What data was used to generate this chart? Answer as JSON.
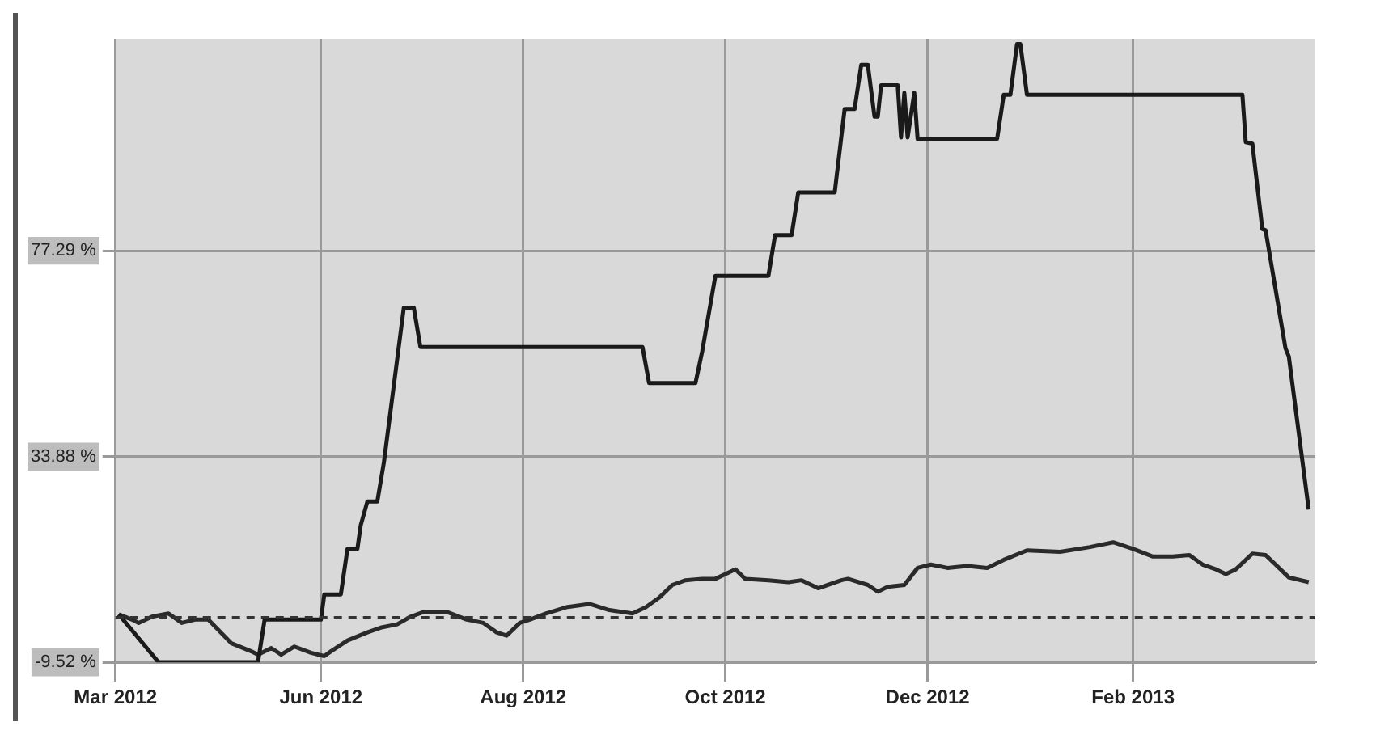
{
  "chart_data": {
    "type": "line",
    "x": [
      "2012-04-01",
      "2012-04-13",
      "2012-05-13",
      "2012-05-15",
      "2012-06-01",
      "2012-06-02",
      "2012-06-07",
      "2012-06-09",
      "2012-06-12",
      "2012-06-13",
      "2012-06-15",
      "2012-06-18",
      "2012-06-20",
      "2012-06-26",
      "2012-06-29",
      "2012-07-01",
      "2012-09-06",
      "2012-09-08",
      "2012-09-22",
      "2012-09-24",
      "2012-09-28",
      "2012-10-14",
      "2012-10-16",
      "2012-10-21",
      "2012-10-23",
      "2012-11-03",
      "2012-11-06",
      "2012-11-09",
      "2012-11-11",
      "2012-11-13",
      "2012-11-15",
      "2012-11-16",
      "2012-11-17",
      "2012-11-22",
      "2012-11-23",
      "2012-11-24",
      "2012-11-25",
      "2012-11-27",
      "2012-11-28",
      "2012-12-22",
      "2012-12-24",
      "2012-12-26",
      "2012-12-28",
      "2012-12-29",
      "2012-12-31",
      "2013-03-06",
      "2013-03-07",
      "2013-03-09",
      "2013-03-12",
      "2013-03-13",
      "2013-03-19",
      "2013-03-20",
      "2013-03-26"
    ],
    "series": [
      {
        "color": "#1a1a1a",
        "values": [
          0.6,
          -9.5,
          -9.5,
          -0.5,
          -0.5,
          4.8,
          4.8,
          14.4,
          14.4,
          19.4,
          24.4,
          24.4,
          32.7,
          65.3,
          65.3,
          57.0,
          57.0,
          49.4,
          49.4,
          56.0,
          72.0,
          72.0,
          80.6,
          80.6,
          89.6,
          89.6,
          107.2,
          107.2,
          116.5,
          116.5,
          105.6,
          105.6,
          112.2,
          112.2,
          101.2,
          110.6,
          101.2,
          110.6,
          100.9,
          100.9,
          110.2,
          110.2,
          120.9,
          120.9,
          110.2,
          110.2,
          100.2,
          99.9,
          81.9,
          81.6,
          56.7,
          55.0,
          22.7
        ]
      },
      {
        "color": "#2a2a2a",
        "x": [
          "2012-04-01",
          "2012-04-05",
          "2012-04-07",
          "2012-04-11",
          "2012-04-16",
          "2012-04-20",
          "2012-04-24",
          "2012-04-28",
          "2012-05-05",
          "2012-05-11",
          "2012-05-13",
          "2012-05-17",
          "2012-05-20",
          "2012-05-24",
          "2012-05-29",
          "2012-06-02",
          "2012-06-04",
          "2012-06-09",
          "2012-06-15",
          "2012-06-19",
          "2012-06-24",
          "2012-06-28",
          "2012-07-02",
          "2012-07-09",
          "2012-07-15",
          "2012-07-20",
          "2012-07-24",
          "2012-07-27",
          "2012-07-31",
          "2012-08-03",
          "2012-08-08",
          "2012-08-14",
          "2012-08-21",
          "2012-08-27",
          "2012-09-03",
          "2012-09-07",
          "2012-09-11",
          "2012-09-15",
          "2012-09-19",
          "2012-09-24",
          "2012-09-28",
          "2012-10-04",
          "2012-10-07",
          "2012-10-14",
          "2012-10-20",
          "2012-10-24",
          "2012-10-29",
          "2012-11-05",
          "2012-11-07",
          "2012-11-13",
          "2012-11-16",
          "2012-11-19",
          "2012-11-24",
          "2012-11-28",
          "2012-12-02",
          "2012-12-07",
          "2012-12-13",
          "2012-12-19",
          "2012-12-24",
          "2012-12-31",
          "2013-01-10",
          "2013-01-19",
          "2013-01-26",
          "2013-02-01",
          "2013-02-07",
          "2013-02-13",
          "2013-02-18",
          "2013-02-22",
          "2013-02-26",
          "2013-03-01",
          "2013-03-04",
          "2013-03-09",
          "2013-03-13",
          "2013-03-16",
          "2013-03-20",
          "2013-03-26"
        ],
        "values": [
          0.6,
          -0.5,
          -1.2,
          0.1,
          0.8,
          -1.2,
          -0.5,
          -0.5,
          -5.5,
          -7.2,
          -7.9,
          -6.5,
          -7.9,
          -6.2,
          -7.5,
          -8.2,
          -7.2,
          -4.9,
          -3.2,
          -2.2,
          -1.5,
          0.1,
          1.1,
          1.1,
          -0.5,
          -1.2,
          -3.2,
          -3.9,
          -1.2,
          -0.5,
          0.8,
          2.1,
          2.8,
          1.5,
          0.8,
          2.1,
          4.1,
          6.8,
          7.8,
          8.1,
          8.1,
          10.1,
          8.1,
          7.8,
          7.4,
          7.8,
          6.1,
          7.8,
          8.1,
          6.8,
          5.4,
          6.4,
          6.8,
          10.4,
          11.1,
          10.4,
          10.8,
          10.4,
          12.1,
          14.1,
          13.8,
          14.8,
          15.8,
          14.4,
          12.8,
          12.8,
          13.1,
          11.1,
          10.1,
          9.1,
          10.1,
          13.4,
          13.1,
          11.1,
          8.4,
          7.4
        ]
      }
    ],
    "xlim": [
      "2012-03-31",
      "2013-03-28"
    ],
    "xticks": [
      {
        "value": "2012-03-31",
        "label": "Mar 2012"
      },
      {
        "value": "2012-06-01",
        "label": "Jun 2012"
      },
      {
        "value": "2012-08-01",
        "label": "Aug 2012"
      },
      {
        "value": "2012-10-01",
        "label": "Oct 2012"
      },
      {
        "value": "2012-12-01",
        "label": "Dec 2012"
      },
      {
        "value": "2013-02-01",
        "label": "Feb 2013"
      }
    ],
    "ylim": [
      -9.52,
      122
    ],
    "yticks": [
      {
        "value": -9.52,
        "label": "-9.52 %"
      },
      {
        "value": 33.88,
        "label": "33.88 %"
      },
      {
        "value": 77.29,
        "label": "77.29 %"
      }
    ],
    "ref_lines": [
      {
        "axis": "y",
        "value": 0,
        "line_style": "dashed",
        "color": "#333333"
      }
    ],
    "grid": true,
    "marker": "none",
    "line_style": "solid",
    "legend": false
  }
}
